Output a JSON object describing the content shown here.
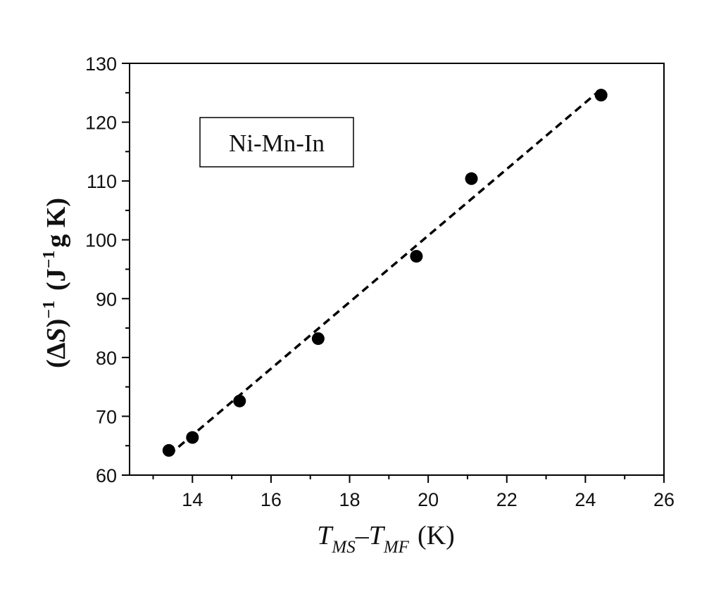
{
  "chart_data": {
    "type": "scatter",
    "legend_label": "Ni-Mn-In",
    "legend_placement": "top-left",
    "xlabel": {
      "var_1": "T",
      "sub_1": "MS",
      "minus": "–",
      "var_2": "T",
      "sub_2": "MF",
      "unit": "(K)"
    },
    "ylabel": {
      "open": "(",
      "delta": "Δ",
      "var": "S",
      "close": ")",
      "exp": "−1",
      "unit_open": "(J",
      "unit_exp": "−1",
      "unit_rest": "g K)"
    },
    "xlim": [
      12.4,
      26
    ],
    "ylim": [
      60,
      130
    ],
    "x_ticks": [
      14,
      16,
      18,
      20,
      22,
      24,
      26
    ],
    "x_tick_labels": [
      "14",
      "16",
      "18",
      "20",
      "22",
      "24",
      "26"
    ],
    "x_minor_ticks": [
      13,
      15,
      17,
      19,
      21,
      23,
      25
    ],
    "y_ticks": [
      60,
      70,
      80,
      90,
      100,
      110,
      120,
      130
    ],
    "y_tick_labels": [
      "60",
      "70",
      "80",
      "90",
      "100",
      "110",
      "120",
      "130"
    ],
    "y_minor_ticks": [
      65,
      75,
      85,
      95,
      105,
      115,
      125
    ],
    "grid": false,
    "series": [
      {
        "marker": "filled-circle",
        "x": [
          13.4,
          14.0,
          15.2,
          17.2,
          19.7,
          21.1,
          24.4
        ],
        "y": [
          64.2,
          66.4,
          72.6,
          83.2,
          97.2,
          110.4,
          124.6
        ]
      }
    ],
    "fit_line": {
      "style": "dashed",
      "x": [
        13.4,
        24.4
      ],
      "y": [
        63.4,
        125.6
      ]
    },
    "colors": {
      "marker": "#000000",
      "line": "#000000",
      "frame": "#000000"
    }
  }
}
